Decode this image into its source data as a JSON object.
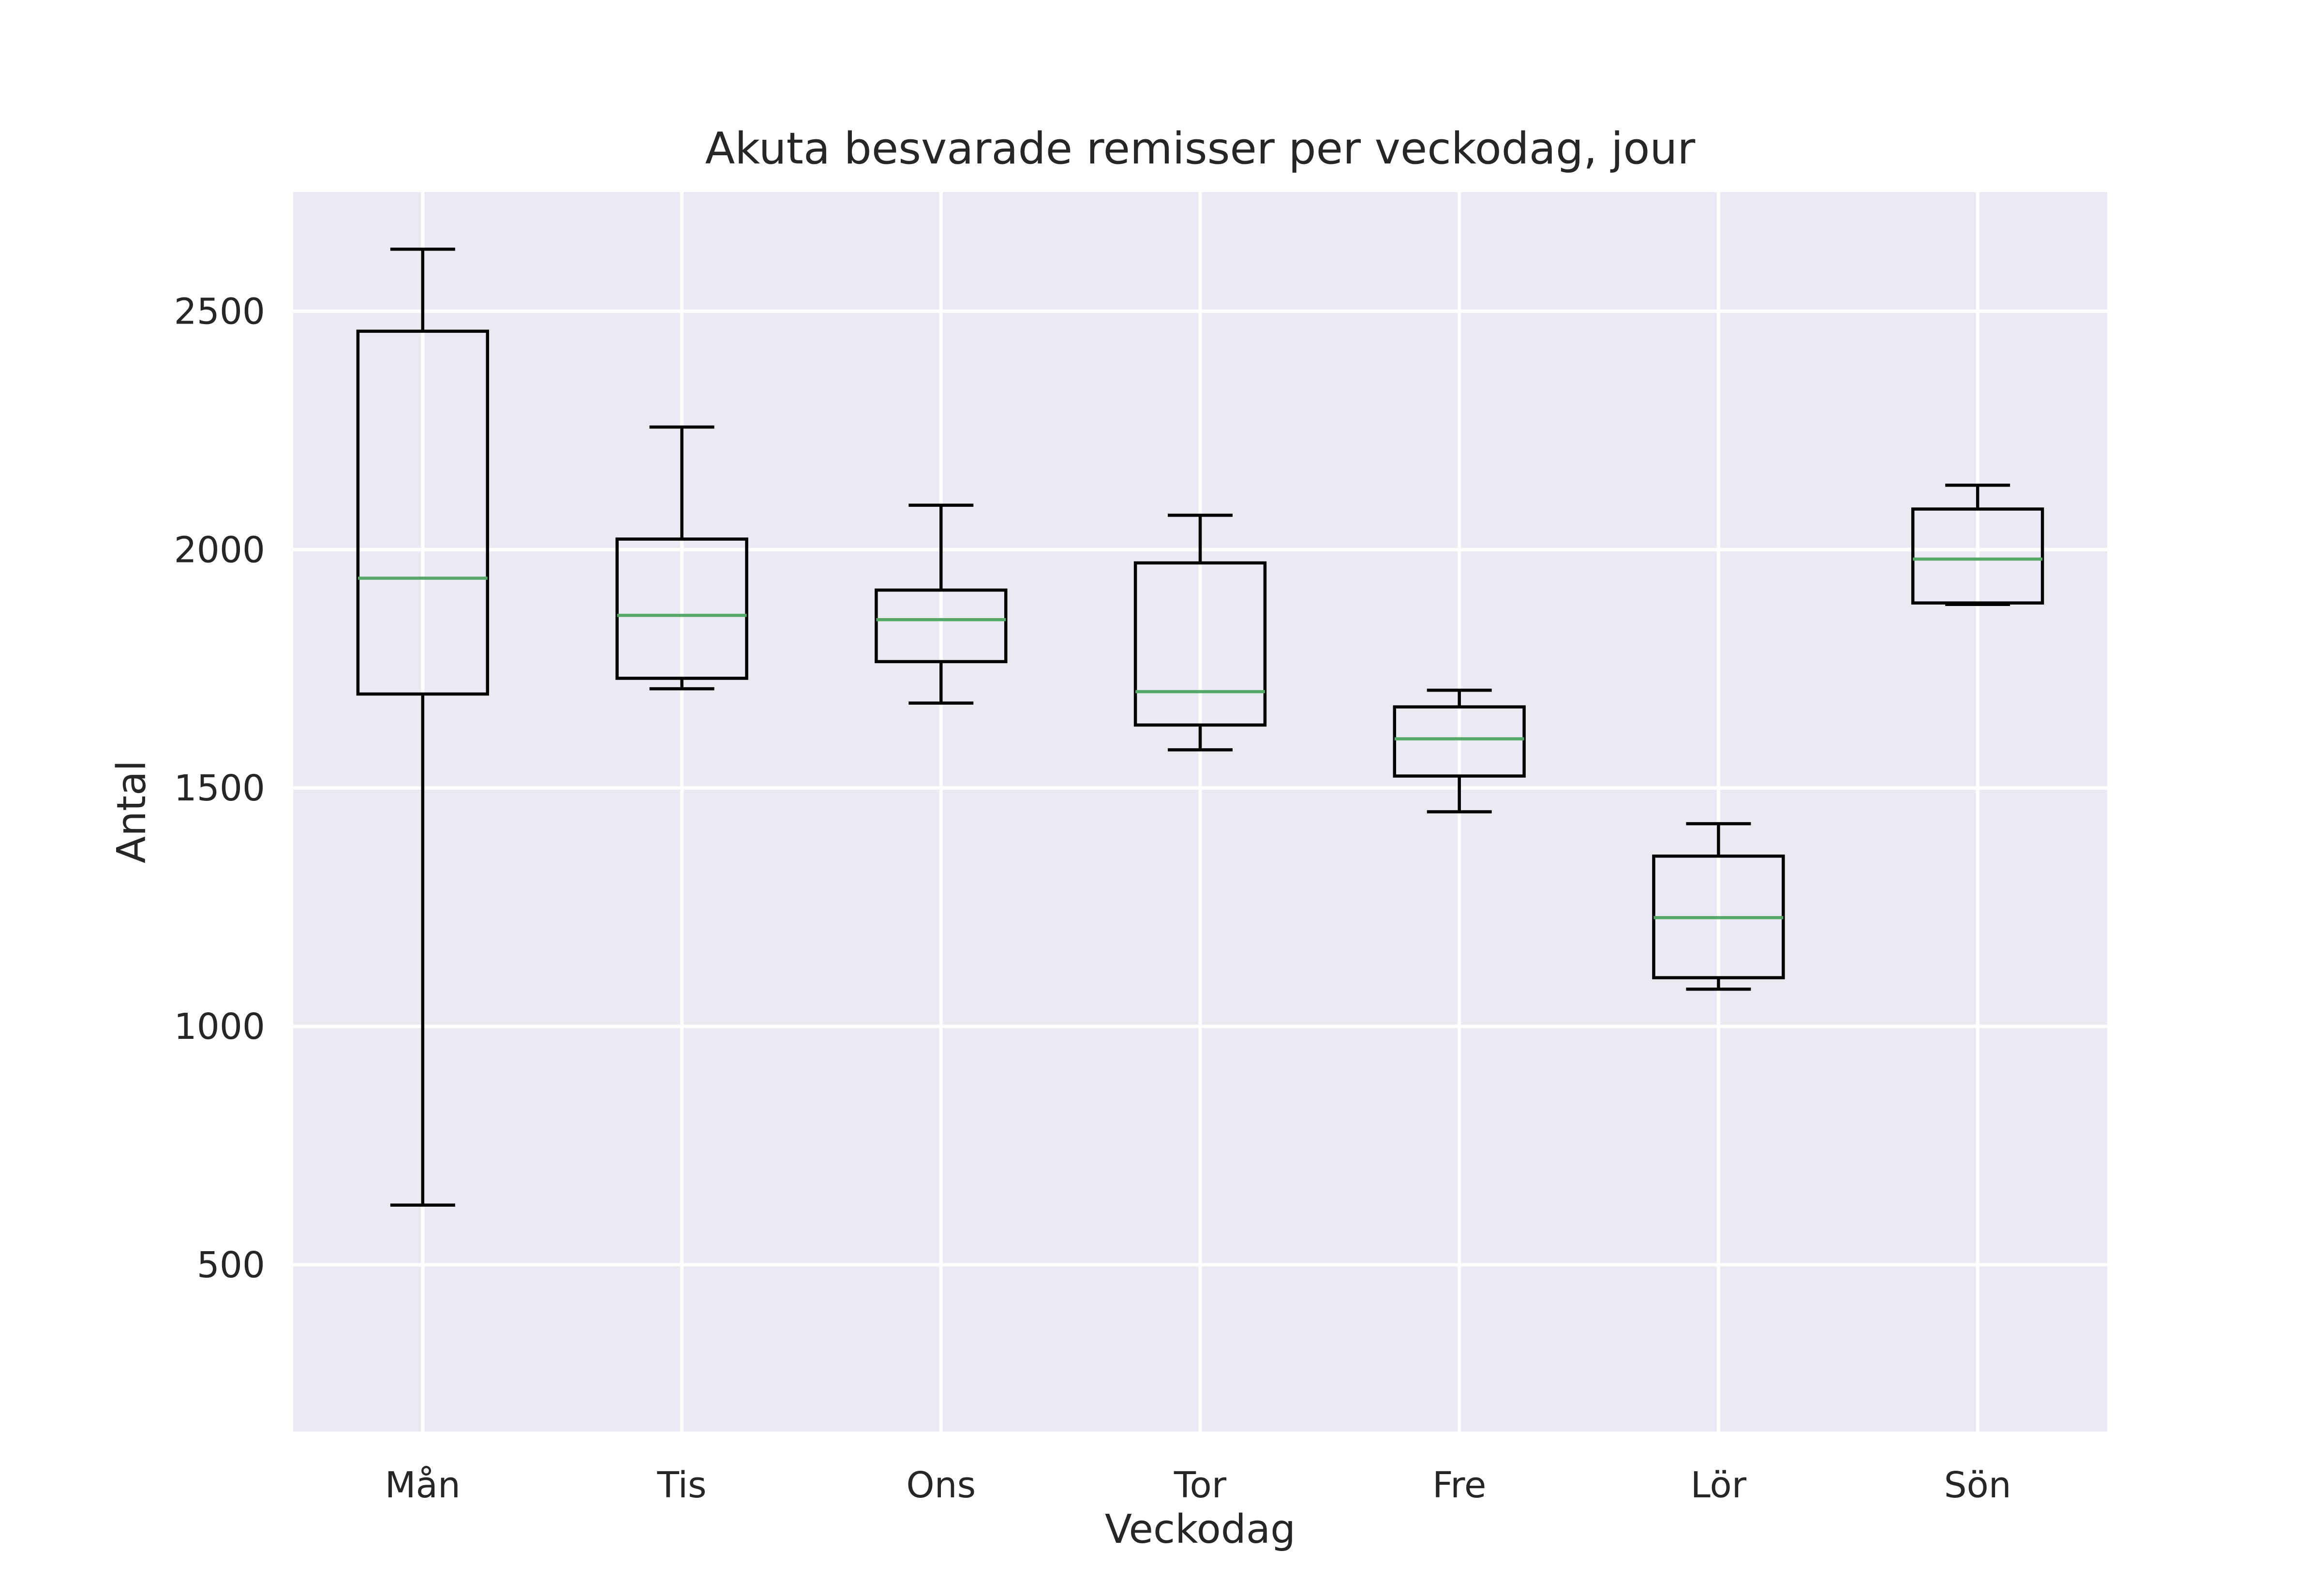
{
  "chart_data": {
    "type": "boxplot",
    "title": "Akuta besvarade remisser per veckodag, jour",
    "xlabel": "Veckodag",
    "ylabel": "Antal",
    "ylim": [
      150,
      2750
    ],
    "yticks": [
      500,
      1000,
      1500,
      2000,
      2500
    ],
    "grid": true,
    "background_color": "#eaeaf2",
    "grid_color": "#ffffff",
    "box_color": "#000000",
    "median_color": "#55a868",
    "categories": [
      "Mån",
      "Tis",
      "Ons",
      "Tor",
      "Fre",
      "Lör",
      "Sön"
    ],
    "boxes": [
      {
        "label": "Mån",
        "whisker_low": 625,
        "q1": 1697,
        "median": 1940,
        "q3": 2458,
        "whisker_high": 2630
      },
      {
        "label": "Tis",
        "whisker_low": 1708,
        "q1": 1730,
        "median": 1862,
        "q3": 2022,
        "whisker_high": 2257
      },
      {
        "label": "Ons",
        "whisker_low": 1678,
        "q1": 1765,
        "median": 1853,
        "q3": 1915,
        "whisker_high": 2093
      },
      {
        "label": "Tor",
        "whisker_low": 1580,
        "q1": 1632,
        "median": 1702,
        "q3": 1972,
        "whisker_high": 2072
      },
      {
        "label": "Fre",
        "whisker_low": 1450,
        "q1": 1525,
        "median": 1603,
        "q3": 1670,
        "whisker_high": 1705
      },
      {
        "label": "Lör",
        "whisker_low": 1078,
        "q1": 1102,
        "median": 1228,
        "q3": 1357,
        "whisker_high": 1425
      },
      {
        "label": "Sön",
        "whisker_low": 1885,
        "q1": 1888,
        "median": 1980,
        "q3": 2085,
        "whisker_high": 2135
      }
    ]
  }
}
